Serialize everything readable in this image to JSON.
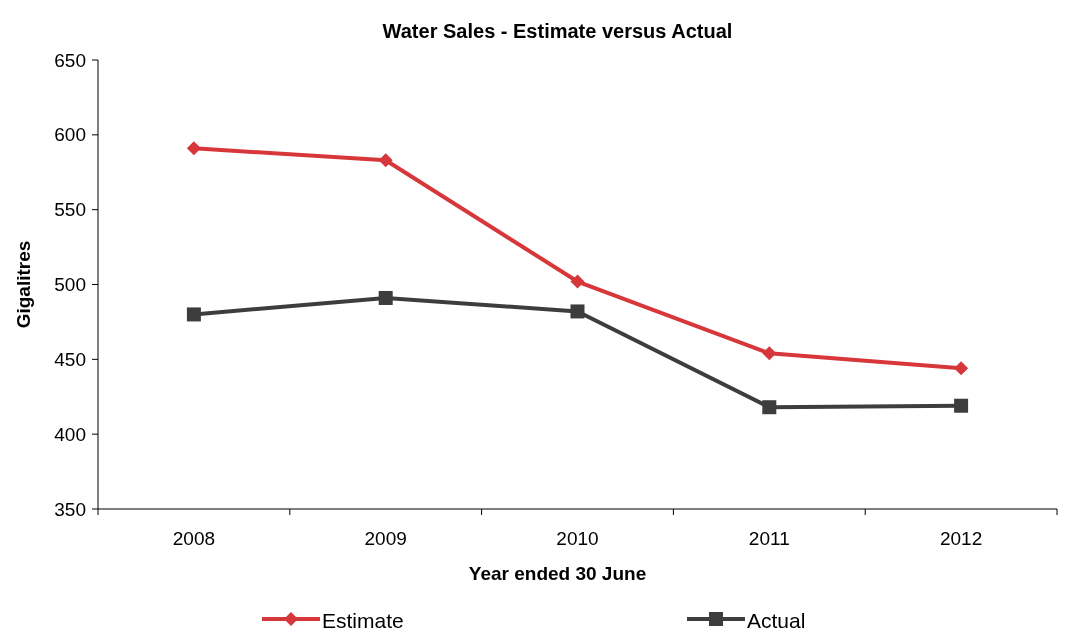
{
  "chart_data": {
    "type": "line",
    "title": "Water Sales - Estimate versus Actual",
    "xlabel": "Year ended 30 June",
    "ylabel": "Gigalitres",
    "categories": [
      "2008",
      "2009",
      "2010",
      "2011",
      "2012"
    ],
    "series": [
      {
        "name": "Estimate",
        "color": "#d7373a",
        "marker": "diamond",
        "values": [
          591,
          583,
          502,
          454,
          444
        ]
      },
      {
        "name": "Actual",
        "color": "#3d3d3d",
        "marker": "square",
        "values": [
          480,
          491,
          482,
          418,
          419
        ]
      }
    ],
    "ylim": [
      350,
      650
    ],
    "yticks": [
      350,
      400,
      450,
      500,
      550,
      600,
      650
    ],
    "grid": false,
    "legend": "bottom"
  }
}
